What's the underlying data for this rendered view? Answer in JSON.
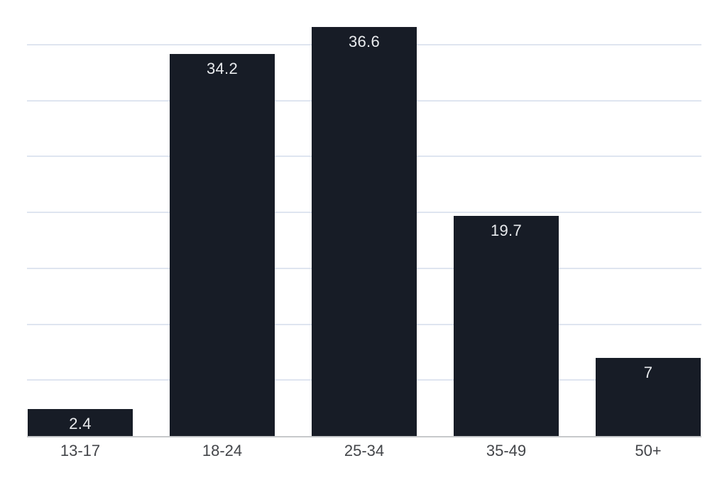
{
  "chart_data": {
    "type": "bar",
    "title": "",
    "xlabel": "",
    "ylabel": "",
    "categories": [
      "13-17",
      "18-24",
      "25-34",
      "35-49",
      "50+"
    ],
    "values": [
      2.4,
      34.2,
      36.6,
      19.7,
      7
    ],
    "value_labels": [
      "2.4",
      "34.2",
      "36.6",
      "19.7",
      "7"
    ],
    "ylim": [
      0,
      39
    ],
    "gridline_values": [
      5,
      10,
      15,
      20,
      25,
      30,
      35
    ],
    "grid": "horizontal-only",
    "legend": "none",
    "y_tick_labels_visible": false,
    "colors": {
      "background": "#ffffff",
      "bar": "#171c26",
      "value_label": "#e9ebee",
      "category_label": "#434549",
      "gridline": "#dfe5f0",
      "axis_line": "#c7c9cb"
    }
  }
}
